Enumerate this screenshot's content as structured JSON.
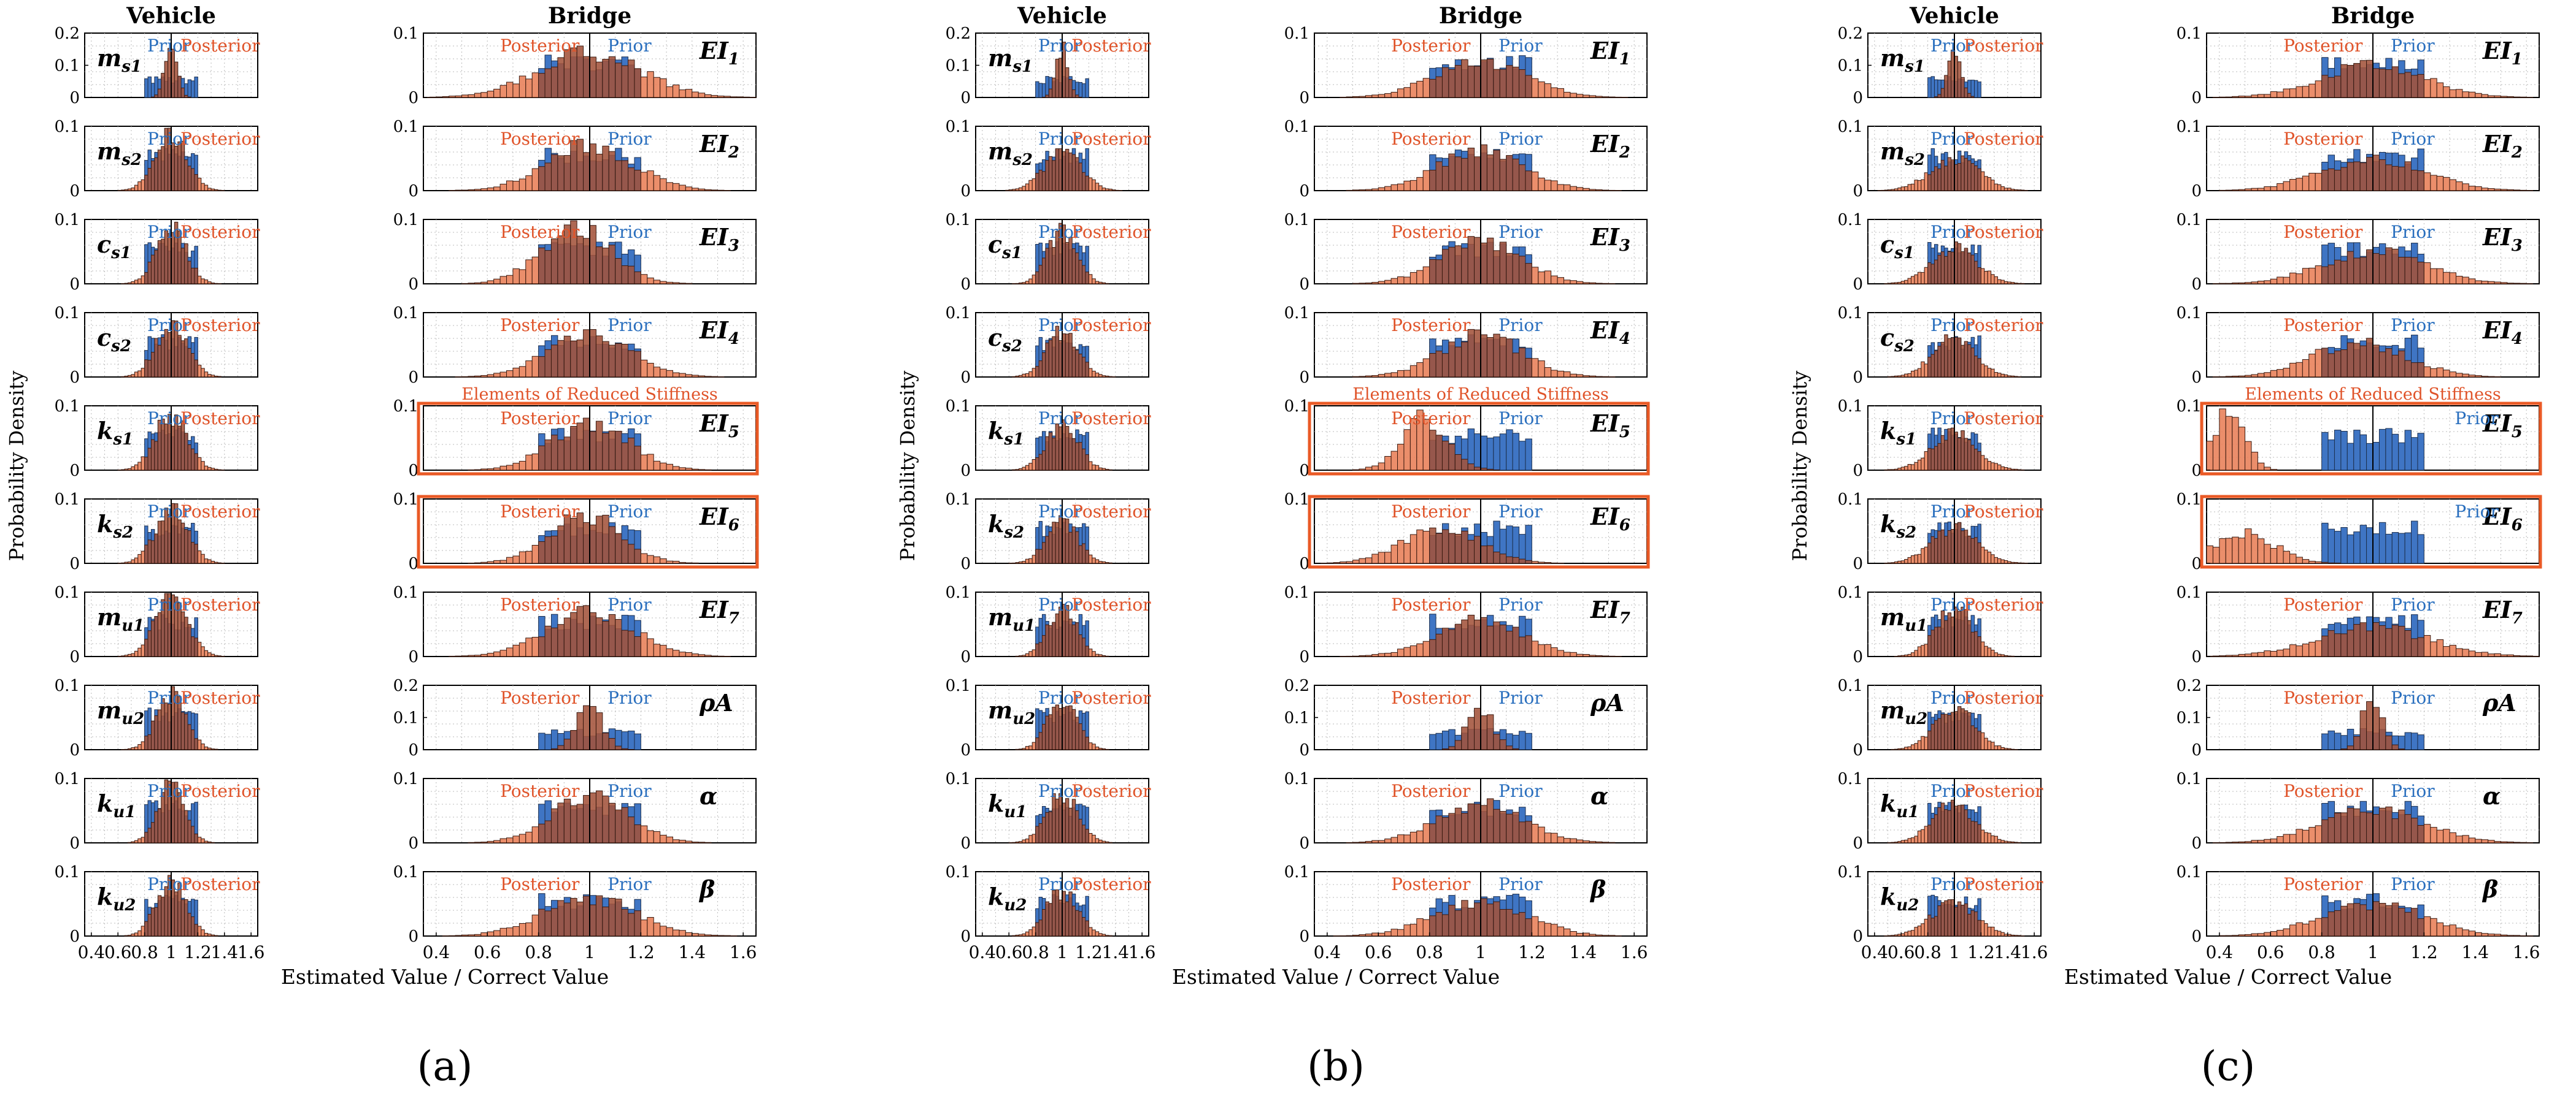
{
  "figure": {
    "panels": [
      "(a)",
      "(b)",
      "(c)"
    ],
    "column_titles": [
      "Vehicle",
      "Bridge"
    ],
    "y_label": "Probability Density",
    "x_label": "Estimated Value / Correct Value",
    "x_ticks": [
      "0.4",
      "0.6",
      "0.8",
      "1",
      "1.2",
      "1.4",
      "1.6"
    ],
    "prior_label": "Prior",
    "posterior_label": "Posterior",
    "reduced_stiffness_label": "Elements of Reduced Stiffness",
    "colors": {
      "prior": "#3f75c4",
      "posterior": "#e9825b",
      "overlap": "#a3533b",
      "highlight": "#ea5a26",
      "prior_text": "#2a6fbe",
      "posterior_text": "#e0542a"
    }
  },
  "chart_data": {
    "type": "bar",
    "description": "Grid of prior (uniform 0.8-1.2) and posterior histograms for 10 vehicle and 10 bridge parameters in three scenarios",
    "xlim": [
      0.35,
      1.65
    ],
    "vehicle_params": [
      {
        "id": "ms1",
        "base": "m",
        "sub": "s1",
        "ylim": [
          0,
          0.2
        ],
        "yticks": [
          "0.2",
          "0.1",
          "0"
        ]
      },
      {
        "id": "ms2",
        "base": "m",
        "sub": "s2",
        "ylim": [
          0,
          0.1
        ],
        "yticks": [
          "0.1",
          "0"
        ]
      },
      {
        "id": "cs1",
        "base": "c",
        "sub": "s1",
        "ylim": [
          0,
          0.1
        ],
        "yticks": [
          "0.1",
          "0"
        ]
      },
      {
        "id": "cs2",
        "base": "c",
        "sub": "s2",
        "ylim": [
          0,
          0.1
        ],
        "yticks": [
          "0.1",
          "0"
        ]
      },
      {
        "id": "ks1",
        "base": "k",
        "sub": "s1",
        "ylim": [
          0,
          0.1
        ],
        "yticks": [
          "0.1",
          "0"
        ]
      },
      {
        "id": "ks2",
        "base": "k",
        "sub": "s2",
        "ylim": [
          0,
          0.1
        ],
        "yticks": [
          "0.1",
          "0"
        ]
      },
      {
        "id": "mu1",
        "base": "m",
        "sub": "u1",
        "ylim": [
          0,
          0.1
        ],
        "yticks": [
          "0.1",
          "0"
        ]
      },
      {
        "id": "mu2",
        "base": "m",
        "sub": "u2",
        "ylim": [
          0,
          0.1
        ],
        "yticks": [
          "0.1",
          "0"
        ]
      },
      {
        "id": "ku1",
        "base": "k",
        "sub": "u1",
        "ylim": [
          0,
          0.1
        ],
        "yticks": [
          "0.1",
          "0"
        ]
      },
      {
        "id": "ku2",
        "base": "k",
        "sub": "u2",
        "ylim": [
          0,
          0.1
        ],
        "yticks": [
          "0.1",
          "0"
        ]
      }
    ],
    "bridge_params": [
      {
        "id": "EI1",
        "base": "EI",
        "sub": "1",
        "ylim": [
          0,
          0.1
        ],
        "yticks": [
          "0.1",
          "0"
        ]
      },
      {
        "id": "EI2",
        "base": "EI",
        "sub": "2",
        "ylim": [
          0,
          0.1
        ],
        "yticks": [
          "0.1",
          "0"
        ]
      },
      {
        "id": "EI3",
        "base": "EI",
        "sub": "3",
        "ylim": [
          0,
          0.1
        ],
        "yticks": [
          "0.1",
          "0"
        ]
      },
      {
        "id": "EI4",
        "base": "EI",
        "sub": "4",
        "ylim": [
          0,
          0.1
        ],
        "yticks": [
          "0.1",
          "0"
        ]
      },
      {
        "id": "EI5",
        "base": "EI",
        "sub": "5",
        "ylim": [
          0,
          0.1
        ],
        "yticks": [
          "0.1",
          "0"
        ],
        "reduced": true
      },
      {
        "id": "EI6",
        "base": "EI",
        "sub": "6",
        "ylim": [
          0,
          0.1
        ],
        "yticks": [
          "0.1",
          "0"
        ],
        "reduced": true
      },
      {
        "id": "EI7",
        "base": "EI",
        "sub": "7",
        "ylim": [
          0,
          0.1
        ],
        "yticks": [
          "0.1",
          "0"
        ]
      },
      {
        "id": "rhoA",
        "base": "ρA",
        "sub": "",
        "ylim": [
          0,
          0.2
        ],
        "yticks": [
          "0.2",
          "0.1",
          "0"
        ]
      },
      {
        "id": "alpha",
        "base": "α",
        "sub": "",
        "ylim": [
          0,
          0.1
        ],
        "yticks": [
          "0.1",
          "0"
        ]
      },
      {
        "id": "beta",
        "base": "β",
        "sub": "",
        "ylim": [
          0,
          0.1
        ],
        "yticks": [
          "0.1",
          "0"
        ]
      }
    ],
    "prior": {
      "range": [
        0.8,
        1.2
      ],
      "density": 0.055
    },
    "posterior_shapes": {
      "note": "posterior approximated as normal: [mean, std, peak density]",
      "a": {
        "vehicle": [
          [
            1.0,
            0.045,
            0.17
          ],
          [
            1.0,
            0.12,
            0.085
          ],
          [
            1.0,
            0.11,
            0.09
          ],
          [
            1.0,
            0.12,
            0.08
          ],
          [
            1.0,
            0.12,
            0.085
          ],
          [
            1.0,
            0.12,
            0.085
          ],
          [
            1.0,
            0.12,
            0.095
          ],
          [
            1.0,
            0.11,
            0.085
          ],
          [
            1.0,
            0.1,
            0.095
          ],
          [
            1.0,
            0.11,
            0.085
          ]
        ],
        "bridge": [
          [
            1.0,
            0.2,
            0.07
          ],
          [
            1.0,
            0.17,
            0.07
          ],
          [
            0.95,
            0.14,
            0.085
          ],
          [
            1.0,
            0.16,
            0.07
          ],
          [
            1.0,
            0.15,
            0.075
          ],
          [
            0.98,
            0.14,
            0.075
          ],
          [
            1.0,
            0.17,
            0.07
          ],
          [
            1.0,
            0.05,
            0.14
          ],
          [
            1.0,
            0.15,
            0.07
          ],
          [
            1.0,
            0.18,
            0.06
          ]
        ]
      },
      "b": {
        "vehicle": [
          [
            1.0,
            0.045,
            0.15
          ],
          [
            1.0,
            0.14,
            0.06
          ],
          [
            1.0,
            0.11,
            0.08
          ],
          [
            1.0,
            0.12,
            0.07
          ],
          [
            1.0,
            0.12,
            0.07
          ],
          [
            1.0,
            0.12,
            0.065
          ],
          [
            1.0,
            0.11,
            0.075
          ],
          [
            1.0,
            0.11,
            0.075
          ],
          [
            1.0,
            0.12,
            0.075
          ],
          [
            1.0,
            0.12,
            0.07
          ]
        ],
        "bridge": [
          [
            1.0,
            0.18,
            0.055
          ],
          [
            1.0,
            0.17,
            0.06
          ],
          [
            1.0,
            0.16,
            0.065
          ],
          [
            1.0,
            0.16,
            0.065
          ],
          [
            0.78,
            0.09,
            0.08
          ],
          [
            0.85,
            0.15,
            0.055
          ],
          [
            1.0,
            0.17,
            0.055
          ],
          [
            1.0,
            0.05,
            0.13
          ],
          [
            1.0,
            0.17,
            0.06
          ],
          [
            1.0,
            0.18,
            0.055
          ]
        ]
      },
      "c": {
        "vehicle": [
          [
            1.0,
            0.05,
            0.14
          ],
          [
            1.0,
            0.18,
            0.05
          ],
          [
            1.0,
            0.17,
            0.055
          ],
          [
            1.0,
            0.16,
            0.06
          ],
          [
            1.0,
            0.17,
            0.055
          ],
          [
            1.0,
            0.17,
            0.055
          ],
          [
            1.0,
            0.14,
            0.075
          ],
          [
            1.0,
            0.15,
            0.065
          ],
          [
            1.0,
            0.16,
            0.06
          ],
          [
            1.0,
            0.17,
            0.05
          ]
        ],
        "bridge": [
          [
            1.0,
            0.2,
            0.05
          ],
          [
            1.0,
            0.2,
            0.05
          ],
          [
            1.0,
            0.2,
            0.05
          ],
          [
            0.95,
            0.18,
            0.055
          ],
          [
            0.44,
            0.06,
            0.09
          ],
          [
            0.5,
            0.12,
            0.045
          ],
          [
            1.0,
            0.22,
            0.045
          ],
          [
            1.0,
            0.04,
            0.16
          ],
          [
            1.0,
            0.2,
            0.05
          ],
          [
            1.0,
            0.2,
            0.05
          ]
        ]
      }
    }
  }
}
